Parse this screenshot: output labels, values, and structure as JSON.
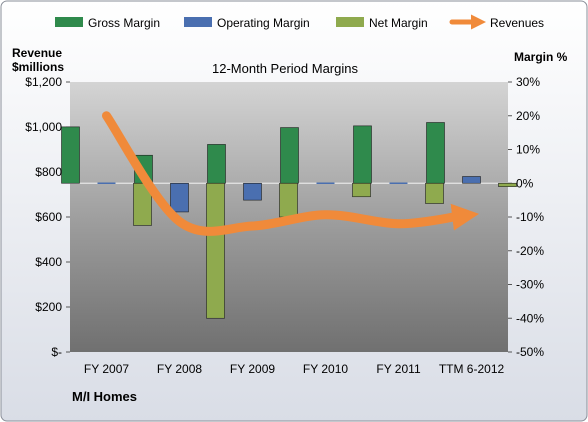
{
  "chart_data": {
    "type": "bar",
    "title": "12-Month Period Margins",
    "left_axis_label_line1": "Revenue",
    "left_axis_label_line2": "$millions",
    "right_axis_label": "Margin %",
    "footer_label": "M/I Homes",
    "categories": [
      "FY 2007",
      "FY 2008",
      "FY 2009",
      "FY 2010",
      "FY 2011",
      "TTM 6-2012"
    ],
    "left_axis": {
      "min": 0,
      "max": 1200,
      "step": 200,
      "tick_labels": [
        "$-",
        "$200",
        "$400",
        "$600",
        "$800",
        "$1,000",
        "$1,200"
      ]
    },
    "right_axis": {
      "min": -50,
      "max": 30,
      "step": 10,
      "tick_labels": [
        "-50%",
        "-40%",
        "-30%",
        "-20%",
        "-10%",
        "0%",
        "10%",
        "20%",
        "30%"
      ]
    },
    "grid": false,
    "legend_position": "top",
    "series": [
      {
        "name": "Gross Margin",
        "axis": "right",
        "kind": "bar",
        "color": "#2f8a4c",
        "values": [
          16.7,
          8.3,
          11.5,
          16.5,
          17.0,
          18.0
        ]
      },
      {
        "name": "Operating Margin",
        "axis": "right",
        "kind": "bar",
        "color": "#4a6fb0",
        "values": [
          0,
          -8.5,
          -5.0,
          0,
          0,
          2.0
        ]
      },
      {
        "name": "Net Margin",
        "axis": "right",
        "kind": "bar",
        "color": "#8faa4e",
        "values": [
          -12.5,
          -40.0,
          -10.0,
          -4.0,
          -6.0,
          -1.0
        ]
      },
      {
        "name": "Revenues",
        "axis": "left",
        "kind": "line",
        "color": "#f08a3a",
        "values": [
          1050,
          580,
          560,
          610,
          570,
          610
        ]
      }
    ]
  }
}
